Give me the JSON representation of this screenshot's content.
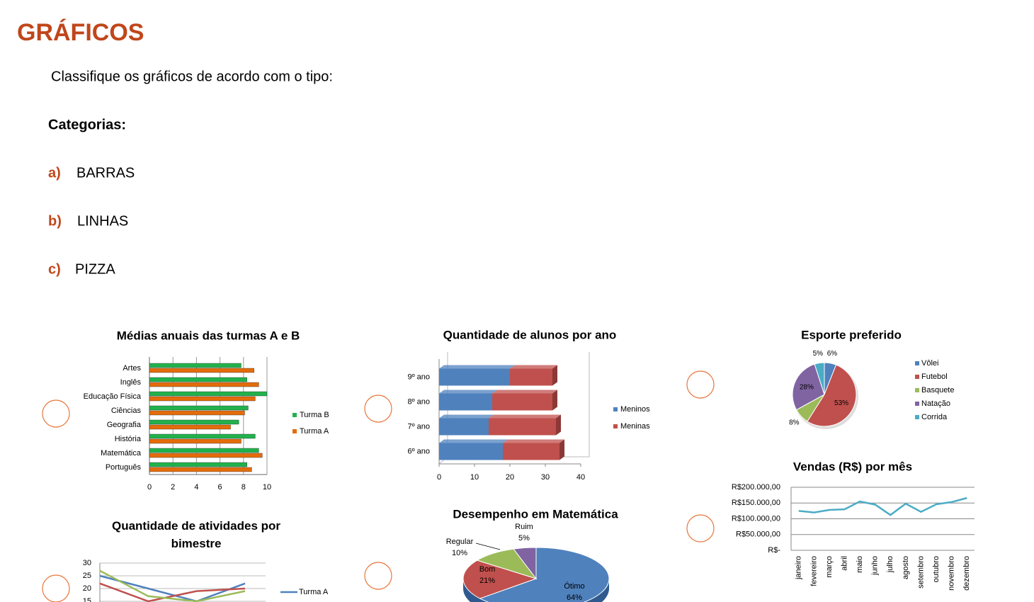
{
  "header": {
    "title": "GRÁFICOS",
    "instruction": "Classifique os gráficos de acordo com o tipo:",
    "categories_label": "Categorias:",
    "items": [
      {
        "letter": "a)",
        "text": "BARRAS"
      },
      {
        "letter": "b)",
        "text": "LINHAS"
      },
      {
        "letter": "c)",
        "text": "PIZZA"
      }
    ]
  },
  "chart_data": [
    {
      "type": "hbar",
      "title": "Médias anuais das turmas A e B",
      "categories": [
        "Artes",
        "Inglês",
        "Educação Física",
        "Ciências",
        "Geografia",
        "História",
        "Matemática",
        "Português"
      ],
      "series": [
        {
          "name": "Turma B",
          "color": "#22b14c",
          "values": [
            7.8,
            8.3,
            10,
            8.4,
            7.6,
            9.0,
            9.3,
            8.3
          ]
        },
        {
          "name": "Turma A",
          "color": "#e46c0a",
          "values": [
            8.9,
            9.3,
            9.0,
            8.1,
            6.9,
            7.8,
            9.6,
            8.7
          ]
        }
      ],
      "xlim": [
        0,
        10
      ],
      "xticks": [
        0,
        2,
        4,
        6,
        8,
        10
      ],
      "grid": true
    },
    {
      "type": "stacked-hbar",
      "title": "Quantidade de alunos por ano",
      "categories": [
        "9º ano",
        "8º ano",
        "7º ano",
        "6º ano"
      ],
      "series": [
        {
          "name": "Meninos",
          "color": "#4f81bd",
          "values": [
            20,
            15,
            14,
            18
          ]
        },
        {
          "name": "Meninas",
          "color": "#c0504d",
          "values": [
            12,
            17,
            19,
            16
          ]
        }
      ],
      "xlim": [
        0,
        40
      ],
      "xticks": [
        0,
        10,
        20,
        30,
        40
      ]
    },
    {
      "type": "pie",
      "title": "Esporte preferido",
      "categories": [
        "Vôlei",
        "Futebol",
        "Basquete",
        "Natação",
        "Corrida"
      ],
      "values": [
        6,
        53,
        8,
        28,
        5
      ],
      "value_labels": [
        "6%",
        "53%",
        "8%",
        "28%",
        "5%"
      ],
      "colors": [
        "#4f81bd",
        "#c0504d",
        "#9bbb59",
        "#8064a2",
        "#4bacc6"
      ]
    },
    {
      "type": "line",
      "title": "Vendas (R$) por mês",
      "categories": [
        "janeiro",
        "fevereiro",
        "março",
        "abril",
        "maio",
        "junho",
        "julho",
        "agosto",
        "setembro",
        "outubro",
        "novembro",
        "dezembro"
      ],
      "series": [
        {
          "color": "#4bacc6",
          "values": [
            125000,
            120000,
            128000,
            130000,
            155000,
            145000,
            112000,
            148000,
            122000,
            146000,
            153000,
            166000
          ]
        }
      ],
      "ylim": [
        0,
        200000
      ],
      "yticks": [
        {
          "value": 200000,
          "label": "R$200.000,00"
        },
        {
          "value": 150000,
          "label": "R$150.000,00"
        },
        {
          "value": 100000,
          "label": "R$100.000,00"
        },
        {
          "value": 50000,
          "label": "R$50.000,00"
        },
        {
          "value": 0,
          "label": "R$-"
        }
      ],
      "grid": true
    },
    {
      "type": "line",
      "title": "Quantidade de atividades por bimestre",
      "categories": [
        null,
        null,
        null,
        null
      ],
      "series": [
        {
          "name": "Turma A",
          "color": "#4f81bd",
          "values": [
            25,
            20,
            15,
            22
          ]
        },
        {
          "color": "#c0504d",
          "values": [
            22,
            15,
            19,
            20
          ]
        },
        {
          "color": "#9bbb59",
          "values": [
            27,
            17,
            15,
            19
          ]
        }
      ],
      "ylim": [
        0,
        30
      ],
      "yticks": [
        30,
        25,
        20,
        15
      ],
      "grid": true
    },
    {
      "type": "pie3d",
      "title": "Desempenho em Matemática",
      "categories": [
        "Ótimo",
        "Bom",
        "Regular",
        "Ruim"
      ],
      "values": [
        64,
        21,
        10,
        5
      ],
      "value_labels": [
        "64%",
        "21%",
        "10%",
        "5%"
      ],
      "colors": [
        "#4f81bd",
        "#c0504d",
        "#9bbb59",
        "#8064a2"
      ]
    }
  ]
}
